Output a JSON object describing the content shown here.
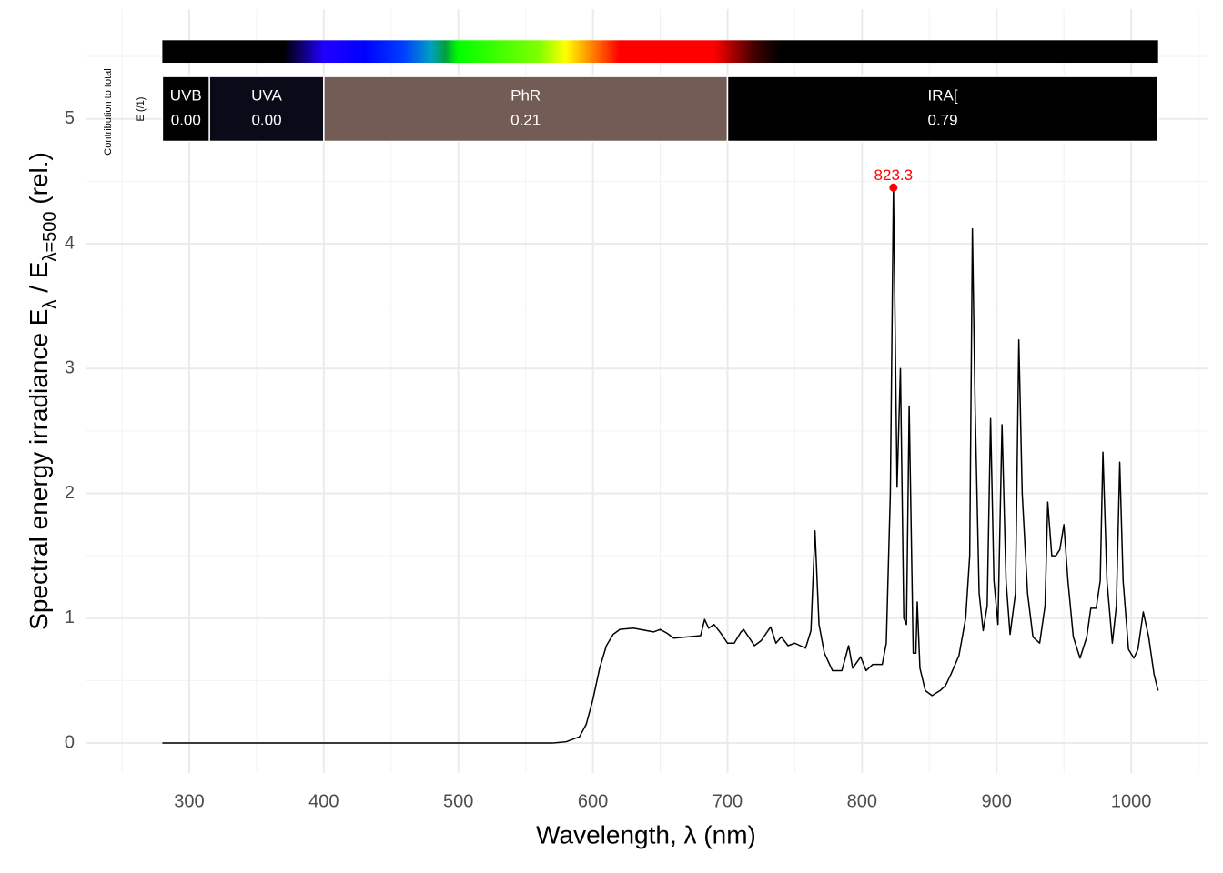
{
  "chart_data": {
    "type": "line",
    "x_label": "Wavelength, λ (nm)",
    "y_label": [
      {
        "text": "Spectral energy irradiance  E"
      },
      {
        "text": "λ",
        "sub": true
      },
      {
        "text": " / E"
      },
      {
        "text": "λ=500",
        "sub": true
      },
      {
        "text": "  (rel.)"
      }
    ],
    "xlim": [
      223.6,
      1057.4
    ],
    "ylim": [
      -0.24,
      5.88
    ],
    "xticks": [
      300,
      400,
      500,
      600,
      700,
      800,
      900,
      1000
    ],
    "xminor_ticks": [
      250,
      350,
      450,
      550,
      650,
      750,
      850,
      950,
      1050
    ],
    "yticks": [
      0,
      1,
      2,
      3,
      4,
      5
    ],
    "yminor_ticks": [
      0.5,
      1.5,
      2.5,
      3.5,
      4.5,
      5.5
    ],
    "grid": true,
    "series": [
      {
        "color": "#000000",
        "x": [
          280,
          570,
          575,
          580,
          590,
          595,
          600,
          605,
          610,
          615,
          620,
          630,
          640,
          645,
          650,
          655,
          660,
          670,
          680,
          683,
          686,
          690,
          695,
          700,
          705,
          710,
          712,
          720,
          725,
          732,
          736,
          740,
          745,
          750,
          758,
          762,
          765,
          768,
          772,
          778,
          785,
          790,
          793,
          799,
          803,
          808,
          815,
          818,
          821,
          823.3,
          826,
          828.5,
          831,
          833,
          835,
          838,
          840,
          841,
          843,
          847,
          852,
          858,
          862,
          866,
          872,
          877,
          880,
          882,
          884,
          887,
          890,
          893,
          895.5,
          898,
          901,
          904,
          907,
          910,
          914,
          916.5,
          919,
          923,
          927,
          932,
          936,
          938,
          941,
          944,
          947,
          950,
          953,
          957,
          962,
          967,
          970,
          974,
          977,
          979,
          982,
          986,
          989,
          991.5,
          994,
          998,
          1002,
          1005,
          1009,
          1013,
          1017,
          1020
        ],
        "values": [
          0,
          0,
          0.005,
          0.01,
          0.05,
          0.15,
          0.35,
          0.6,
          0.78,
          0.87,
          0.91,
          0.92,
          0.9,
          0.89,
          0.91,
          0.88,
          0.84,
          0.85,
          0.86,
          0.99,
          0.92,
          0.95,
          0.88,
          0.8,
          0.8,
          0.89,
          0.91,
          0.78,
          0.82,
          0.93,
          0.8,
          0.85,
          0.78,
          0.8,
          0.76,
          0.9,
          1.7,
          0.95,
          0.72,
          0.58,
          0.58,
          0.78,
          0.6,
          0.69,
          0.58,
          0.63,
          0.63,
          0.8,
          2.0,
          4.45,
          2.05,
          3.0,
          1.0,
          0.95,
          2.7,
          0.72,
          0.72,
          1.13,
          0.6,
          0.42,
          0.38,
          0.42,
          0.46,
          0.55,
          0.7,
          1.0,
          1.5,
          4.12,
          2.7,
          1.2,
          0.9,
          1.1,
          2.6,
          1.3,
          0.95,
          2.55,
          1.3,
          0.87,
          1.2,
          3.23,
          2.0,
          1.2,
          0.85,
          0.8,
          1.1,
          1.93,
          1.5,
          1.5,
          1.55,
          1.75,
          1.3,
          0.85,
          0.68,
          0.85,
          1.08,
          1.08,
          1.3,
          2.33,
          1.3,
          0.8,
          1.1,
          2.25,
          1.3,
          0.75,
          0.68,
          0.75,
          1.05,
          0.85,
          0.55,
          0.42
        ]
      }
    ],
    "peak": {
      "x": 823.3,
      "y": 4.45,
      "color": "#ff0000"
    },
    "spectrum_bar": {
      "range": [
        280,
        1020
      ],
      "y": [
        5.45,
        5.63
      ]
    },
    "band_y": [
      4.82,
      5.34
    ],
    "bands": [
      {
        "name": "UVB",
        "range": [
          280,
          315
        ],
        "value": 0.0,
        "value_label": "0.00",
        "color": "#000000"
      },
      {
        "name": "UVA",
        "range": [
          315,
          400
        ],
        "value": 0.0,
        "value_label": "0.00",
        "color": "#0a0a18"
      },
      {
        "name": "PhR",
        "range": [
          400,
          700
        ],
        "value": 0.21,
        "value_label": "0.21",
        "color": "#735c55"
      },
      {
        "name": "IRA[",
        "range": [
          700,
          1020
        ],
        "value": 0.79,
        "value_label": "0.79",
        "color": "#000000"
      }
    ],
    "side_labels": [
      "Contribution to total",
      "E (/1)"
    ]
  }
}
